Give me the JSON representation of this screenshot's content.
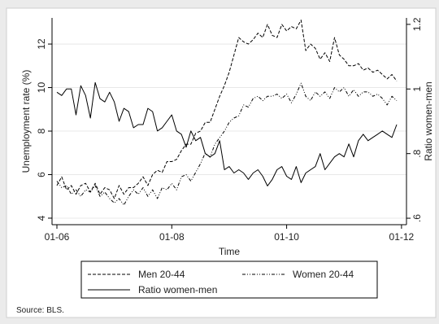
{
  "chart_data": {
    "type": "line",
    "xlabel": "Time",
    "ylabel_left": "Unemployment rate (%)",
    "ylabel_right": "Ratio women-men",
    "x_ticks": [
      "01-06",
      "01-08",
      "01-10",
      "01-12"
    ],
    "ylim_left": [
      3.7,
      13.2
    ],
    "ylim_right": [
      0.58,
      1.22
    ],
    "y_ticks_left": [
      4,
      6,
      8,
      10,
      12
    ],
    "y_ticks_right": [
      ".6",
      ".8",
      "1",
      "1.2"
    ],
    "grid": true,
    "source": "Source: BLS.",
    "legend": {
      "placement": "bottom",
      "entries": [
        "Men 20-44",
        "Women 20-44",
        "Ratio women-men"
      ]
    },
    "series": [
      {
        "name": "Men 20-44",
        "axis": "left",
        "style": "dashed",
        "x": [
          "2006-01",
          "2006-02",
          "2006-03",
          "2006-04",
          "2006-05",
          "2006-06",
          "2006-07",
          "2006-08",
          "2006-09",
          "2006-10",
          "2006-11",
          "2006-12",
          "2007-01",
          "2007-02",
          "2007-03",
          "2007-04",
          "2007-05",
          "2007-06",
          "2007-07",
          "2007-08",
          "2007-09",
          "2007-10",
          "2007-11",
          "2007-12",
          "2008-01",
          "2008-02",
          "2008-03",
          "2008-04",
          "2008-05",
          "2008-06",
          "2008-07",
          "2008-08",
          "2008-09",
          "2008-10",
          "2008-11",
          "2008-12",
          "2009-01",
          "2009-02",
          "2009-03",
          "2009-04",
          "2009-05",
          "2009-06",
          "2009-07",
          "2009-08",
          "2009-09",
          "2009-10",
          "2009-11",
          "2009-12",
          "2010-01",
          "2010-02",
          "2010-03",
          "2010-04",
          "2010-05",
          "2010-06",
          "2010-07",
          "2010-08",
          "2010-09",
          "2010-10",
          "2010-11",
          "2010-12",
          "2011-01",
          "2011-02",
          "2011-03",
          "2011-04",
          "2011-05",
          "2011-06",
          "2011-07",
          "2011-08",
          "2011-09",
          "2011-10",
          "2011-11",
          "2011-12"
        ],
        "values": [
          5.5,
          5.9,
          5.3,
          5.5,
          5.1,
          5.5,
          5.6,
          5.2,
          5.6,
          5.1,
          5.4,
          5.3,
          4.9,
          5.5,
          5.1,
          5.4,
          5.4,
          5.6,
          5.9,
          5.5,
          6.0,
          6.2,
          6.1,
          6.6,
          6.6,
          6.7,
          7.1,
          7.4,
          7.4,
          7.9,
          8.0,
          8.4,
          8.4,
          9.0,
          9.6,
          10.1,
          10.7,
          11.5,
          12.3,
          12.1,
          12.0,
          12.2,
          12.5,
          12.3,
          12.9,
          12.4,
          12.3,
          12.9,
          12.6,
          12.8,
          12.7,
          13.1,
          11.7,
          12.0,
          11.8,
          11.3,
          11.6,
          11.2,
          12.3,
          11.5,
          11.3,
          11.0,
          11.0,
          11.1,
          10.8,
          10.9,
          10.7,
          10.8,
          10.6,
          10.4,
          10.6,
          10.3
        ]
      },
      {
        "name": "Women 20-44",
        "axis": "left",
        "style": "dash-dot",
        "x": [
          "2006-01",
          "2006-02",
          "2006-03",
          "2006-04",
          "2006-05",
          "2006-06",
          "2006-07",
          "2006-08",
          "2006-09",
          "2006-10",
          "2006-11",
          "2006-12",
          "2007-01",
          "2007-02",
          "2007-03",
          "2007-04",
          "2007-05",
          "2007-06",
          "2007-07",
          "2007-08",
          "2007-09",
          "2007-10",
          "2007-11",
          "2007-12",
          "2008-01",
          "2008-02",
          "2008-03",
          "2008-04",
          "2008-05",
          "2008-06",
          "2008-07",
          "2008-08",
          "2008-09",
          "2008-10",
          "2008-11",
          "2008-12",
          "2009-01",
          "2009-02",
          "2009-03",
          "2009-04",
          "2009-05",
          "2009-06",
          "2009-07",
          "2009-08",
          "2009-09",
          "2009-10",
          "2009-11",
          "2009-12",
          "2010-01",
          "2010-02",
          "2010-03",
          "2010-04",
          "2010-05",
          "2010-06",
          "2010-07",
          "2010-08",
          "2010-09",
          "2010-10",
          "2010-11",
          "2010-12",
          "2011-01",
          "2011-02",
          "2011-03",
          "2011-04",
          "2011-05",
          "2011-06",
          "2011-07",
          "2011-08",
          "2011-09",
          "2011-10",
          "2011-11",
          "2011-12"
        ],
        "values": [
          5.7,
          5.4,
          5.5,
          5.1,
          5.3,
          5.0,
          5.3,
          5.2,
          5.5,
          5.0,
          5.2,
          4.9,
          4.7,
          4.9,
          4.6,
          5.0,
          5.3,
          5.1,
          5.4,
          5.0,
          5.3,
          4.9,
          5.4,
          5.3,
          5.6,
          5.3,
          5.9,
          6.0,
          5.7,
          6.1,
          6.5,
          7.0,
          6.8,
          7.4,
          7.7,
          8.0,
          8.4,
          8.6,
          8.7,
          9.2,
          9.1,
          9.5,
          9.6,
          9.4,
          9.6,
          9.6,
          9.7,
          9.5,
          9.7,
          9.3,
          9.7,
          10.2,
          9.6,
          9.4,
          9.8,
          9.6,
          9.8,
          9.5,
          10.0,
          9.8,
          10.0,
          9.6,
          9.9,
          9.6,
          9.8,
          9.8,
          9.6,
          9.7,
          9.5,
          9.2,
          9.6,
          9.4
        ]
      },
      {
        "name": "Ratio women-men",
        "axis": "right",
        "style": "solid",
        "x": [
          "2006-01",
          "2006-02",
          "2006-03",
          "2006-04",
          "2006-05",
          "2006-06",
          "2006-07",
          "2006-08",
          "2006-09",
          "2006-10",
          "2006-11",
          "2006-12",
          "2007-01",
          "2007-02",
          "2007-03",
          "2007-04",
          "2007-05",
          "2007-06",
          "2007-07",
          "2007-08",
          "2007-09",
          "2007-10",
          "2007-11",
          "2007-12",
          "2008-01",
          "2008-02",
          "2008-03",
          "2008-04",
          "2008-05",
          "2008-06",
          "2008-07",
          "2008-08",
          "2008-09",
          "2008-10",
          "2008-11",
          "2008-12",
          "2009-01",
          "2009-02",
          "2009-03",
          "2009-04",
          "2009-05",
          "2009-06",
          "2009-07",
          "2009-08",
          "2009-09",
          "2009-10",
          "2009-11",
          "2009-12",
          "2010-01",
          "2010-02",
          "2010-03",
          "2010-04",
          "2010-05",
          "2010-06",
          "2010-07",
          "2010-08",
          "2010-09",
          "2010-10",
          "2010-11",
          "2010-12",
          "2011-01",
          "2011-02",
          "2011-03",
          "2011-04",
          "2011-05",
          "2011-06",
          "2011-07",
          "2011-08",
          "2011-09",
          "2011-10",
          "2011-11",
          "2011-12"
        ],
        "values": [
          0.99,
          0.98,
          1.0,
          1.0,
          0.92,
          1.01,
          0.98,
          0.91,
          1.02,
          0.97,
          0.96,
          0.99,
          0.96,
          0.9,
          0.94,
          0.93,
          0.88,
          0.89,
          0.89,
          0.94,
          0.93,
          0.87,
          0.88,
          0.9,
          0.92,
          0.87,
          0.86,
          0.82,
          0.87,
          0.84,
          0.85,
          0.8,
          0.79,
          0.8,
          0.84,
          0.75,
          0.76,
          0.74,
          0.75,
          0.74,
          0.72,
          0.74,
          0.75,
          0.73,
          0.7,
          0.72,
          0.75,
          0.76,
          0.73,
          0.72,
          0.76,
          0.71,
          0.74,
          0.75,
          0.76,
          0.8,
          0.75,
          0.77,
          0.79,
          0.8,
          0.79,
          0.83,
          0.79,
          0.84,
          0.86,
          0.84,
          0.85,
          0.86,
          0.87,
          0.86,
          0.85,
          0.89
        ]
      }
    ]
  }
}
